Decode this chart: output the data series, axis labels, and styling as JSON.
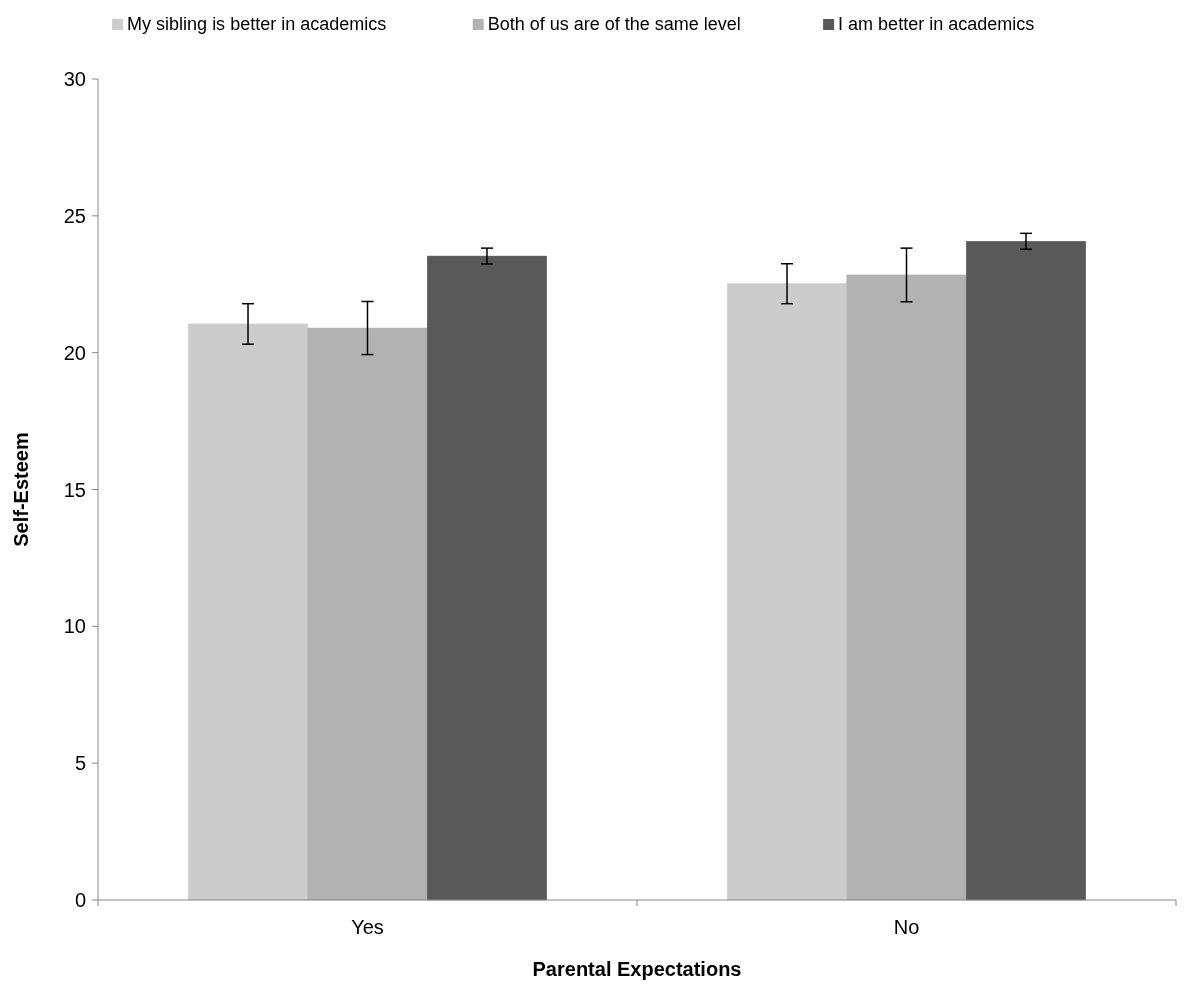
{
  "chart_data": {
    "type": "bar",
    "xlabel": "Parental Expectations",
    "ylabel": "Self-Esteem",
    "categories": [
      "Yes",
      "No"
    ],
    "series": [
      {
        "name": "My sibling is better in academics",
        "color": "#cccccc",
        "values": [
          21.05,
          22.52
        ],
        "errors": [
          0.74,
          0.73
        ]
      },
      {
        "name": "Both of us are of the same level",
        "color": "#b2b2b2",
        "values": [
          20.9,
          22.84
        ],
        "errors": [
          0.97,
          0.98
        ]
      },
      {
        "name": "I am better in academics",
        "color": "#595959",
        "values": [
          23.53,
          24.07
        ],
        "errors": [
          0.29,
          0.29
        ]
      }
    ],
    "ylim": [
      0,
      30
    ],
    "yticks": [
      0,
      5,
      10,
      15,
      20,
      25,
      30
    ],
    "grid": false,
    "legend": "top"
  }
}
